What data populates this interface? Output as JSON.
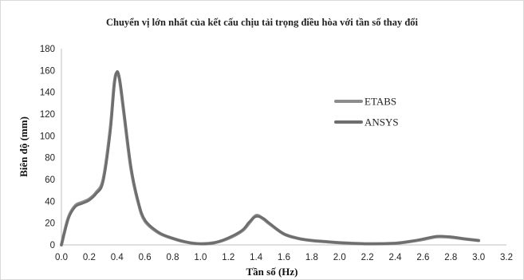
{
  "chart_data": {
    "type": "line",
    "title": "Chuyển vị lớn nhất của kết cấu chịu tải trọng điều hòa với tần số thay đổi",
    "xlabel": "Tần số (Hz)",
    "ylabel": "Biên độ (mm)",
    "xlim": [
      0.0,
      3.2
    ],
    "ylim": [
      0,
      180
    ],
    "xticks": [
      "0.0",
      "0.2",
      "0.4",
      "0.6",
      "0.8",
      "1.0",
      "1.2",
      "1.4",
      "1.6",
      "1.8",
      "2.0",
      "2.2",
      "2.4",
      "2.6",
      "2.8",
      "3.0",
      "3.2"
    ],
    "yticks": [
      "0",
      "20",
      "40",
      "60",
      "80",
      "100",
      "120",
      "140",
      "160",
      "180"
    ],
    "grid": false,
    "legend_position": "right",
    "series": [
      {
        "name": "ETABS",
        "color": "#8c8c8c",
        "x": [
          0.0,
          0.05,
          0.1,
          0.15,
          0.2,
          0.25,
          0.3,
          0.35,
          0.38,
          0.4,
          0.42,
          0.45,
          0.5,
          0.55,
          0.6,
          0.7,
          0.8,
          0.9,
          1.0,
          1.1,
          1.2,
          1.3,
          1.35,
          1.4,
          1.45,
          1.5,
          1.6,
          1.7,
          1.8,
          1.9,
          2.0,
          2.2,
          2.4,
          2.5,
          2.6,
          2.7,
          2.8,
          2.9,
          3.0
        ],
        "y": [
          0,
          25,
          36,
          39,
          42,
          48,
          60,
          105,
          148,
          158,
          150,
          120,
          70,
          40,
          22,
          11,
          6,
          2.5,
          1,
          2,
          6,
          13,
          20,
          27,
          24,
          19,
          10,
          6,
          4,
          3,
          2,
          1,
          1.5,
          3,
          5,
          7.5,
          7,
          5.5,
          4
        ]
      },
      {
        "name": "ANSYS",
        "color": "#6e6e6e",
        "x": [
          0.0,
          0.05,
          0.1,
          0.15,
          0.2,
          0.25,
          0.3,
          0.35,
          0.38,
          0.4,
          0.42,
          0.45,
          0.5,
          0.55,
          0.6,
          0.7,
          0.8,
          0.9,
          1.0,
          1.1,
          1.2,
          1.3,
          1.35,
          1.4,
          1.45,
          1.5,
          1.6,
          1.7,
          1.8,
          1.9,
          2.0,
          2.2,
          2.4,
          2.5,
          2.6,
          2.7,
          2.8,
          2.9,
          3.0
        ],
        "y": [
          0,
          24,
          35,
          38,
          41,
          47,
          58,
          102,
          146,
          159,
          151,
          122,
          72,
          41,
          23,
          11.5,
          6,
          2.5,
          1,
          2,
          6.5,
          13.5,
          21,
          26,
          24.5,
          19.5,
          10,
          6,
          4,
          3,
          2,
          1,
          1.5,
          3,
          5.5,
          8,
          7.5,
          5.5,
          4
        ]
      }
    ]
  }
}
